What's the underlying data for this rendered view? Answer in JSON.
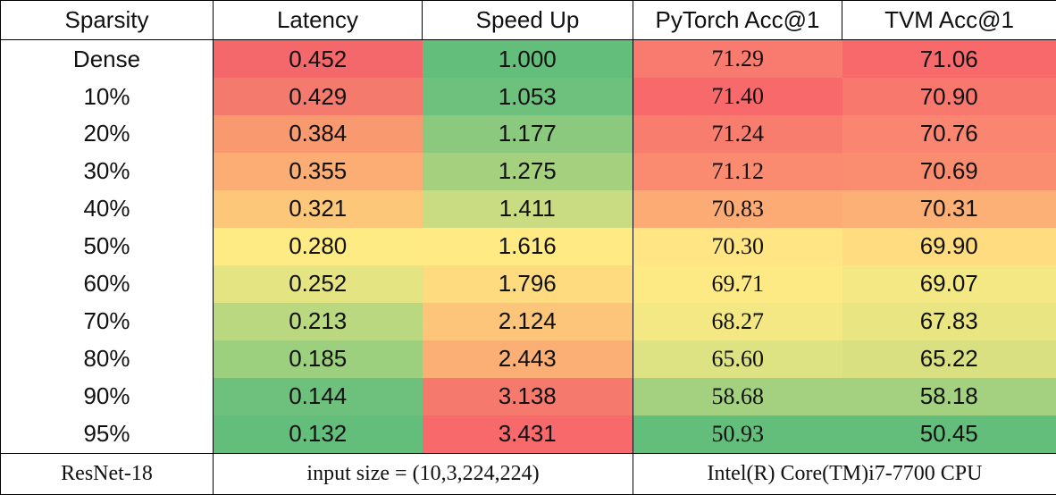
{
  "headers": [
    "Sparsity",
    "Latency",
    "Speed Up",
    "PyTorch Acc@1",
    "TVM Acc@1"
  ],
  "rows": [
    {
      "sparsity": "Dense",
      "latency": "0.452",
      "speedup": "1.000",
      "pytorch": "71.29",
      "tvm": "71.06",
      "colors": {
        "latency": "#f4676a",
        "speedup": "#63be7b",
        "pytorch": "#f97a6f",
        "tvm": "#f8696b"
      }
    },
    {
      "sparsity": "10%",
      "latency": "0.429",
      "speedup": "1.053",
      "pytorch": "71.40",
      "tvm": "70.90",
      "colors": {
        "latency": "#f57a6e",
        "speedup": "#6dc17c",
        "pytorch": "#f8696b",
        "tvm": "#f9786e"
      }
    },
    {
      "sparsity": "20%",
      "latency": "0.384",
      "speedup": "1.177",
      "pytorch": "71.24",
      "tvm": "70.76",
      "colors": {
        "latency": "#f9996f",
        "speedup": "#8ac97e",
        "pytorch": "#f97d6f",
        "tvm": "#fa8570"
      }
    },
    {
      "sparsity": "30%",
      "latency": "0.355",
      "speedup": "1.275",
      "pytorch": "71.12",
      "tvm": "70.69",
      "colors": {
        "latency": "#fbad74",
        "speedup": "#a5d17f",
        "pytorch": "#fa8b70",
        "tvm": "#fa8c70"
      }
    },
    {
      "sparsity": "40%",
      "latency": "0.321",
      "speedup": "1.411",
      "pytorch": "70.83",
      "tvm": "70.31",
      "colors": {
        "latency": "#fdc77a",
        "speedup": "#c9dc81",
        "pytorch": "#fbab73",
        "tvm": "#fcb075"
      }
    },
    {
      "sparsity": "50%",
      "latency": "0.280",
      "speedup": "1.616",
      "pytorch": "70.30",
      "tvm": "69.90",
      "colors": {
        "latency": "#ffeb84",
        "speedup": "#ffea84",
        "pytorch": "#ffe583",
        "tvm": "#ffdc80"
      }
    },
    {
      "sparsity": "60%",
      "latency": "0.252",
      "speedup": "1.796",
      "pytorch": "69.71",
      "tvm": "69.07",
      "colors": {
        "latency": "#e5e483",
        "speedup": "#ffdb80",
        "pytorch": "#fdea84",
        "tvm": "#f3e884"
      }
    },
    {
      "sparsity": "70%",
      "latency": "0.213",
      "speedup": "2.124",
      "pytorch": "68.27",
      "tvm": "67.83",
      "colors": {
        "latency": "#bad880",
        "speedup": "#fdc57a",
        "pytorch": "#f3e884",
        "tvm": "#e9e583"
      }
    },
    {
      "sparsity": "80%",
      "latency": "0.185",
      "speedup": "2.443",
      "pytorch": "65.60",
      "tvm": "65.22",
      "colors": {
        "latency": "#9ccf7e",
        "speedup": "#fbaf74",
        "pytorch": "#dde283",
        "tvm": "#d9e082"
      }
    },
    {
      "sparsity": "90%",
      "latency": "0.144",
      "speedup": "3.138",
      "pytorch": "58.68",
      "tvm": "58.18",
      "colors": {
        "latency": "#6ec17c",
        "speedup": "#f6796e",
        "pytorch": "#a4d17f",
        "tvm": "#a3d17f"
      }
    },
    {
      "sparsity": "95%",
      "latency": "0.132",
      "speedup": "3.431",
      "pytorch": "50.93",
      "tvm": "50.45",
      "colors": {
        "latency": "#63be7b",
        "speedup": "#f8696b",
        "pytorch": "#63be7b",
        "tvm": "#63be7b"
      }
    }
  ],
  "footer": {
    "model": "ResNet-18",
    "input_size": "input size = (10,3,224,224)",
    "cpu": "Intel(R) Core(TM)i7-7700 CPU"
  }
}
